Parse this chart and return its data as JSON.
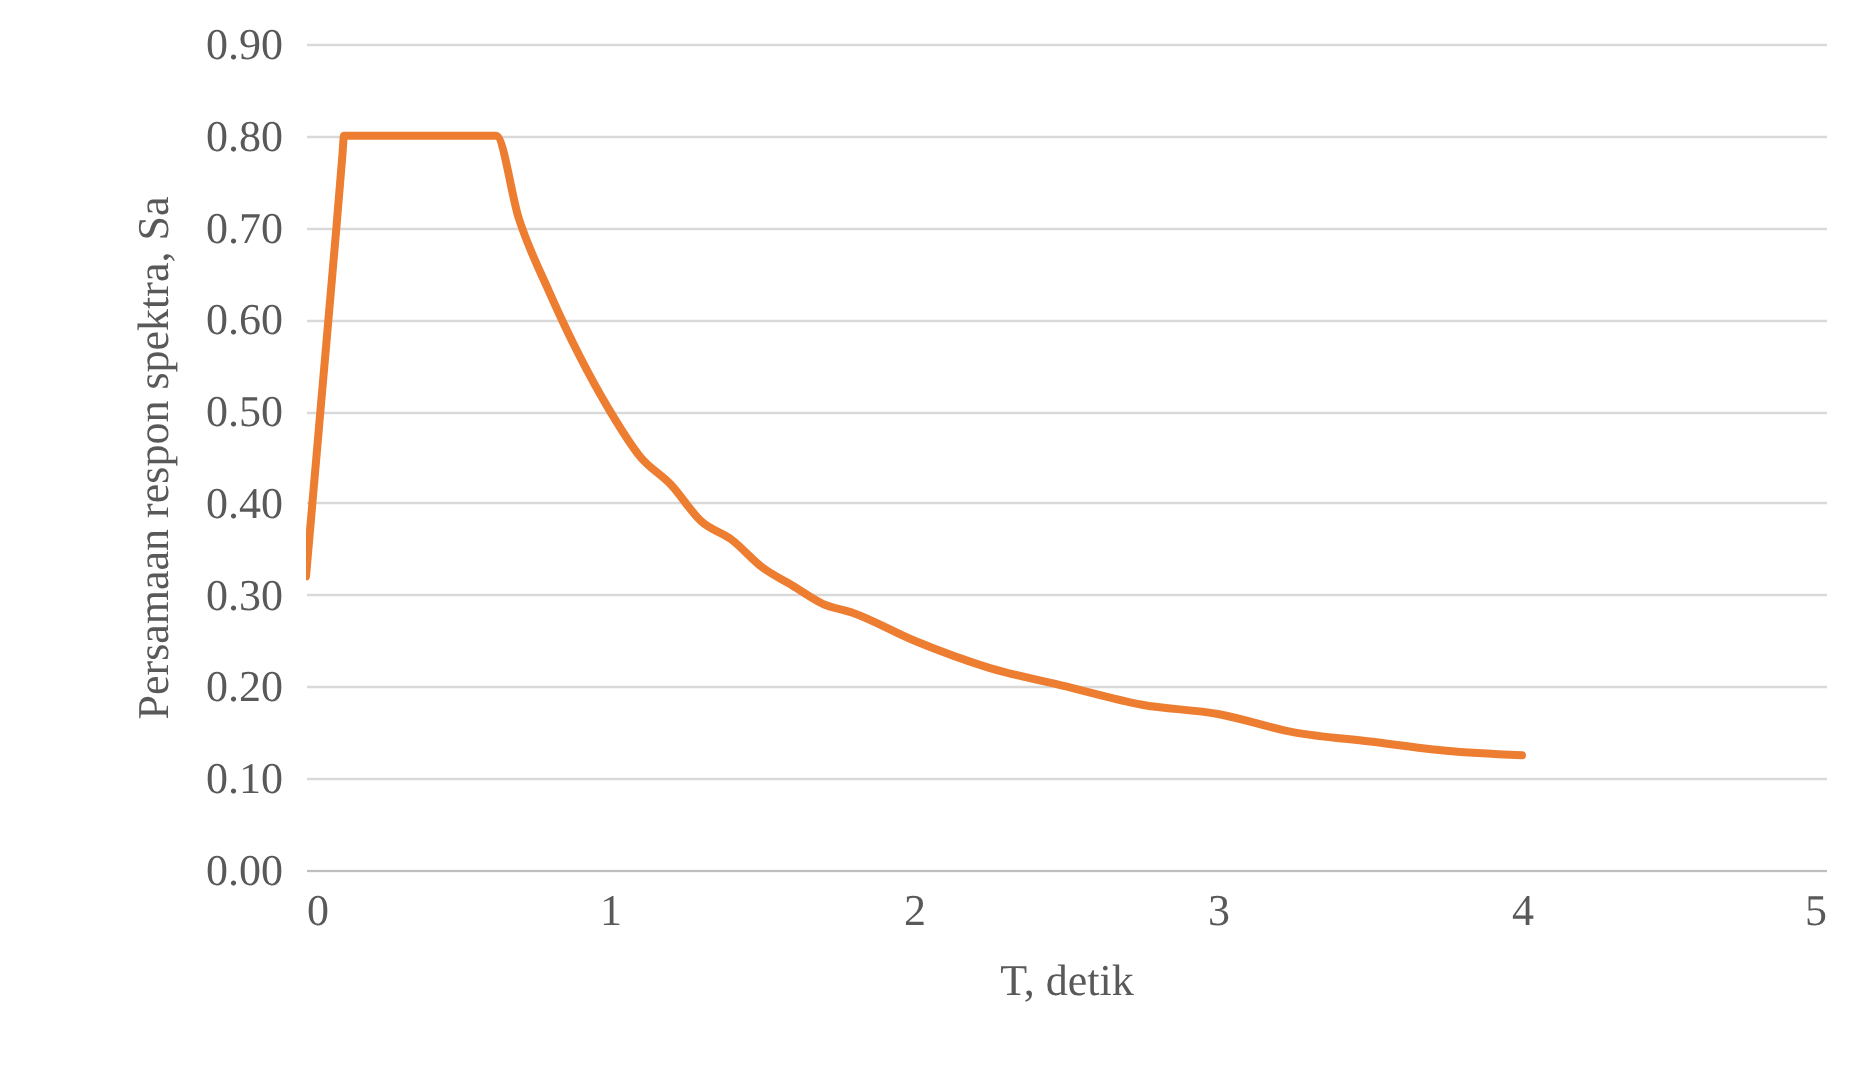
{
  "chart_data": {
    "type": "line",
    "xlabel": "T, detik",
    "ylabel": "Persamaan respon spektra, Sa",
    "x": [
      0,
      0.05,
      0.1,
      0.12,
      0.125,
      0.2,
      0.3,
      0.4,
      0.5,
      0.6,
      0.625,
      0.7,
      0.8,
      0.9,
      1.0,
      1.1,
      1.2,
      1.3,
      1.4,
      1.5,
      1.6,
      1.7,
      1.8,
      2.0,
      2.25,
      2.5,
      2.75,
      3.0,
      3.25,
      3.5,
      3.75,
      4.0
    ],
    "series": [
      {
        "color": "#ed7d31",
        "values": [
          0.32,
          0.51,
          0.7,
          0.78,
          0.8,
          0.8,
          0.8,
          0.8,
          0.8,
          0.8,
          0.8,
          0.71,
          0.63,
          0.56,
          0.5,
          0.45,
          0.42,
          0.38,
          0.36,
          0.33,
          0.31,
          0.29,
          0.28,
          0.25,
          0.22,
          0.2,
          0.18,
          0.17,
          0.15,
          0.14,
          0.13,
          0.125
        ]
      }
    ],
    "xlim": [
      0,
      5
    ],
    "xticks": [
      0,
      1,
      2,
      3,
      4,
      5
    ],
    "ylim": [
      0,
      0.9
    ],
    "yticks": [
      {
        "value": 0,
        "label": "0.00"
      },
      {
        "value": 0.1,
        "label": "0.10"
      },
      {
        "value": 0.2,
        "label": "0.20"
      },
      {
        "value": 0.3,
        "label": "0.30"
      },
      {
        "value": 0.4,
        "label": "0.40"
      },
      {
        "value": 0.5,
        "label": "0.50"
      },
      {
        "value": 0.6,
        "label": "0.60"
      },
      {
        "value": 0.7,
        "label": "0.70"
      },
      {
        "value": 0.8,
        "label": "0.80"
      },
      {
        "value": 0.9,
        "label": "0.90"
      }
    ],
    "grid": "y",
    "marker": "none",
    "line_style": "solid"
  }
}
